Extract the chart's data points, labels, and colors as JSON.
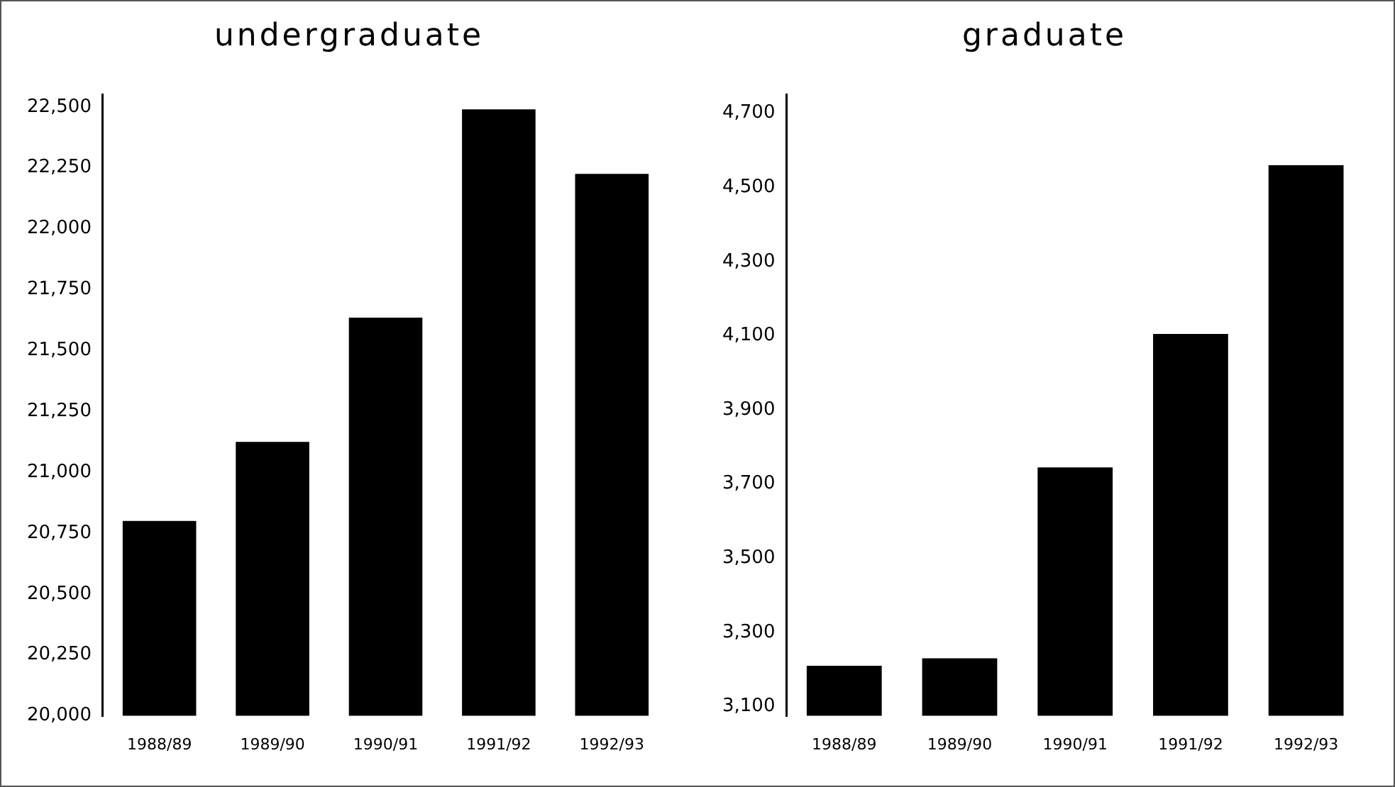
{
  "chart_data": [
    {
      "type": "bar",
      "title": "undergraduate",
      "categories": [
        "1988/89",
        "1989/90",
        "1990/91",
        "1991/92",
        "1992/93"
      ],
      "values": [
        20800,
        21125,
        21635,
        22490,
        22225
      ],
      "color": "#000000",
      "ylim": [
        20000,
        22550
      ],
      "yticks": [
        {
          "value": 20000,
          "label": "20,000"
        },
        {
          "value": 20250,
          "label": "20,250"
        },
        {
          "value": 20500,
          "label": "20,500"
        },
        {
          "value": 20750,
          "label": "20,750"
        },
        {
          "value": 21000,
          "label": "21,000"
        },
        {
          "value": 21250,
          "label": "21,250"
        },
        {
          "value": 21500,
          "label": "21,500"
        },
        {
          "value": 21750,
          "label": "21,750"
        },
        {
          "value": 22000,
          "label": "22,000"
        },
        {
          "value": 22250,
          "label": "22,250"
        },
        {
          "value": 22500,
          "label": "22,500"
        }
      ],
      "grid": false,
      "legend": false
    },
    {
      "type": "bar",
      "title": "graduate",
      "categories": [
        "1988/89",
        "1989/90",
        "1990/91",
        "1991/92",
        "1992/93"
      ],
      "values": [
        3210,
        3230,
        3745,
        4105,
        4560
      ],
      "color": "#000000",
      "ylim": [
        3075,
        4750
      ],
      "yticks": [
        {
          "value": 3100,
          "label": "3,100"
        },
        {
          "value": 3300,
          "label": "3,300"
        },
        {
          "value": 3500,
          "label": "3,500"
        },
        {
          "value": 3700,
          "label": "3,700"
        },
        {
          "value": 3900,
          "label": "3,900"
        },
        {
          "value": 4100,
          "label": "4,100"
        },
        {
          "value": 4300,
          "label": "4,300"
        },
        {
          "value": 4500,
          "label": "4,500"
        },
        {
          "value": 4700,
          "label": "4,700"
        }
      ],
      "grid": false,
      "legend": false
    }
  ]
}
